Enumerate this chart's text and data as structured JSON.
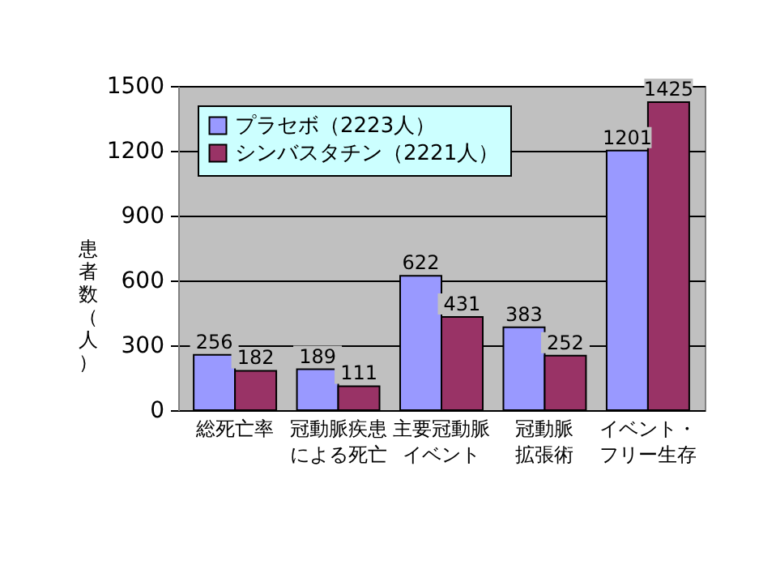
{
  "chart_data": {
    "type": "bar",
    "ylabel": "患者数（人）",
    "categories": [
      "総死亡率",
      "冠動脈疾患による死亡",
      "主要冠動脈イベント",
      "冠動脈拡張術",
      "イベント・フリー生存"
    ],
    "series": [
      {
        "name": "プラセボ（2223人）",
        "color": "#9999ff",
        "values": [
          256,
          189,
          622,
          383,
          1201
        ]
      },
      {
        "name": "シンバスタチン（2221人）",
        "color": "#993366",
        "values": [
          182,
          111,
          431,
          252,
          1425
        ]
      }
    ],
    "ylim": [
      0,
      1500
    ],
    "yticks": [
      0,
      300,
      600,
      900,
      1200,
      1500
    ],
    "grid": "y",
    "legend": "top left",
    "data_labels": true
  }
}
